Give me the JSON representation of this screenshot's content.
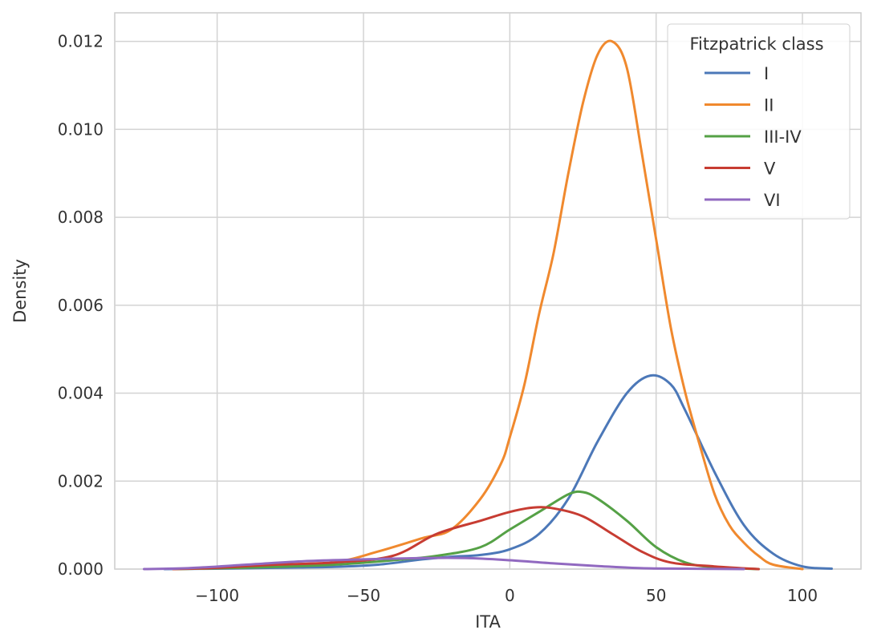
{
  "chart_data": {
    "type": "line",
    "title": "",
    "xlabel": "ITA",
    "ylabel": "Density",
    "xlim": [
      -135,
      120
    ],
    "ylim": [
      0,
      0.01265
    ],
    "xticks": [
      -100,
      -50,
      0,
      50,
      100
    ],
    "xtick_labels": [
      "−100",
      "−50",
      "0",
      "50",
      "100"
    ],
    "yticks": [
      0,
      0.002,
      0.004,
      0.006,
      0.008,
      0.01,
      0.012
    ],
    "ytick_labels": [
      "0.000",
      "0.002",
      "0.004",
      "0.006",
      "0.008",
      "0.010",
      "0.012"
    ],
    "grid": true,
    "legend": {
      "title": "Fitzpatrick class",
      "placement": "top-right"
    },
    "series": [
      {
        "name": "I",
        "color": "#4c78b8",
        "points": [
          [
            -118,
            0
          ],
          [
            -100,
            1e-05
          ],
          [
            -80,
            3e-05
          ],
          [
            -60,
            5e-05
          ],
          [
            -45,
            0.0001
          ],
          [
            -30,
            0.00022
          ],
          [
            -20,
            0.00028
          ],
          [
            -10,
            0.00032
          ],
          [
            0,
            0.00045
          ],
          [
            10,
            0.0008
          ],
          [
            20,
            0.0016
          ],
          [
            30,
            0.0029
          ],
          [
            40,
            0.004
          ],
          [
            48,
            0.0044
          ],
          [
            55,
            0.0042
          ],
          [
            60,
            0.0036
          ],
          [
            70,
            0.0022
          ],
          [
            80,
            0.001
          ],
          [
            90,
            0.00035
          ],
          [
            100,
            6e-05
          ],
          [
            110,
            1e-05
          ]
        ]
      },
      {
        "name": "II",
        "color": "#f0892e",
        "points": [
          [
            -115,
            0
          ],
          [
            -100,
            2e-05
          ],
          [
            -80,
            6e-05
          ],
          [
            -60,
            0.00015
          ],
          [
            -45,
            0.0004
          ],
          [
            -30,
            0.0007
          ],
          [
            -20,
            0.0009
          ],
          [
            -10,
            0.0016
          ],
          [
            -3,
            0.0024
          ],
          [
            0,
            0.003
          ],
          [
            5,
            0.0042
          ],
          [
            10,
            0.0058
          ],
          [
            15,
            0.0072
          ],
          [
            20,
            0.009
          ],
          [
            25,
            0.0106
          ],
          [
            30,
            0.0117
          ],
          [
            35,
            0.012
          ],
          [
            40,
            0.0114
          ],
          [
            45,
            0.0095
          ],
          [
            50,
            0.0075
          ],
          [
            55,
            0.0055
          ],
          [
            60,
            0.004
          ],
          [
            65,
            0.0028
          ],
          [
            70,
            0.0017
          ],
          [
            75,
            0.001
          ],
          [
            80,
            0.0006
          ],
          [
            85,
            0.0003
          ],
          [
            90,
            0.0001
          ],
          [
            100,
            0
          ]
        ]
      },
      {
        "name": "III-IV",
        "color": "#55a146",
        "points": [
          [
            -115,
            0
          ],
          [
            -100,
            2e-05
          ],
          [
            -80,
            5e-05
          ],
          [
            -60,
            0.0001
          ],
          [
            -40,
            0.0002
          ],
          [
            -25,
            0.0003
          ],
          [
            -10,
            0.0005
          ],
          [
            0,
            0.0009
          ],
          [
            10,
            0.0013
          ],
          [
            20,
            0.0017
          ],
          [
            25,
            0.00175
          ],
          [
            30,
            0.0016
          ],
          [
            40,
            0.0011
          ],
          [
            50,
            0.0005
          ],
          [
            60,
            0.00015
          ],
          [
            70,
            4e-05
          ],
          [
            85,
            0
          ]
        ]
      },
      {
        "name": "V",
        "color": "#c73c32",
        "points": [
          [
            -115,
            0
          ],
          [
            -100,
            3e-05
          ],
          [
            -80,
            0.0001
          ],
          [
            -60,
            0.00015
          ],
          [
            -40,
            0.0003
          ],
          [
            -25,
            0.0008
          ],
          [
            -10,
            0.0011
          ],
          [
            0,
            0.0013
          ],
          [
            8,
            0.0014
          ],
          [
            15,
            0.00138
          ],
          [
            25,
            0.0012
          ],
          [
            35,
            0.0008
          ],
          [
            45,
            0.0004
          ],
          [
            55,
            0.00015
          ],
          [
            70,
            6e-05
          ],
          [
            85,
            0
          ]
        ]
      },
      {
        "name": "VI",
        "color": "#9169c0",
        "points": [
          [
            -125,
            0
          ],
          [
            -110,
            2e-05
          ],
          [
            -90,
            0.0001
          ],
          [
            -70,
            0.00018
          ],
          [
            -50,
            0.00022
          ],
          [
            -30,
            0.00025
          ],
          [
            -15,
            0.00025
          ],
          [
            0,
            0.0002
          ],
          [
            15,
            0.00013
          ],
          [
            30,
            7e-05
          ],
          [
            45,
            2e-05
          ],
          [
            60,
            1e-05
          ],
          [
            80,
            0
          ]
        ]
      }
    ]
  }
}
